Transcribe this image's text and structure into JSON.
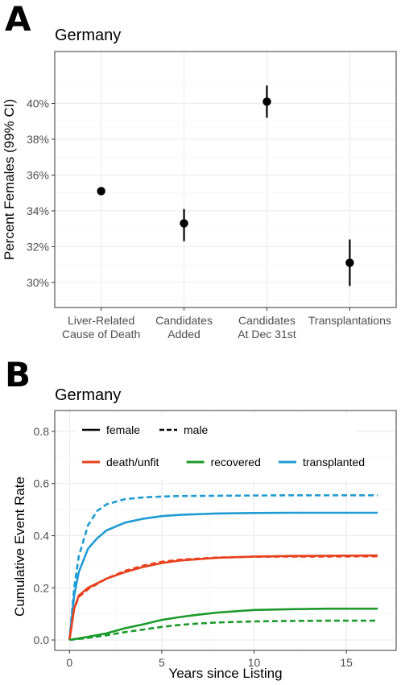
{
  "panels": [
    {
      "letter": "A",
      "title": "Germany"
    },
    {
      "letter": "B",
      "title": "Germany"
    }
  ],
  "chart_data": [
    {
      "type": "scatter",
      "title": "Germany",
      "ylabel": "Percent Females (99% CI)",
      "xlabel": "",
      "categories": [
        [
          "Liver-Related",
          "Cause of Death"
        ],
        [
          "Candidates",
          "Added"
        ],
        [
          "Candidates",
          "At Dec 31st"
        ],
        [
          "Transplantations"
        ]
      ],
      "values": [
        35.1,
        33.3,
        40.1,
        31.1
      ],
      "ci_low": [
        null,
        32.3,
        39.2,
        29.8
      ],
      "ci_high": [
        null,
        34.1,
        41.0,
        32.4
      ],
      "ylim": [
        28.6,
        42.9
      ],
      "yticks": [
        30,
        32,
        34,
        36,
        38,
        40
      ],
      "ytick_labels": [
        "30%",
        "32%",
        "34%",
        "36%",
        "38%",
        "40%"
      ],
      "grid": true
    },
    {
      "type": "line",
      "title": "Germany",
      "xlabel": "Years since Listing",
      "ylabel": "Cumulative Event Rate",
      "xlim": [
        -0.8,
        17.7
      ],
      "ylim": [
        -0.04,
        0.88
      ],
      "xticks": [
        0,
        5,
        10,
        15
      ],
      "xtick_labels": [
        "0",
        "5",
        "10",
        "15"
      ],
      "yticks": [
        0.0,
        0.2,
        0.4,
        0.6,
        0.8
      ],
      "ytick_labels": [
        "0.0",
        "0.2",
        "0.4",
        "0.6",
        "0.8"
      ],
      "grid": true,
      "legend_placement": "top-left",
      "legend": {
        "linetypes": [
          {
            "label": "female",
            "dash": "solid"
          },
          {
            "label": "male",
            "dash": "dashed"
          }
        ],
        "colors": [
          {
            "label": "death/unfit",
            "color": "#e8401c"
          },
          {
            "label": "recovered",
            "color": "#1a9a2a"
          },
          {
            "label": "transplanted",
            "color": "#1f9bd4"
          }
        ]
      },
      "series": [
        {
          "event": "transplanted",
          "sex": "male",
          "color": "#1f9bd4",
          "dash": "dashed",
          "x": [
            0,
            0.25,
            0.5,
            1,
            1.5,
            2,
            3,
            4,
            5,
            6,
            8,
            10,
            12,
            14,
            16.7
          ],
          "y": [
            0,
            0.2,
            0.32,
            0.44,
            0.495,
            0.52,
            0.54,
            0.547,
            0.55,
            0.552,
            0.553,
            0.554,
            0.555,
            0.555,
            0.555
          ]
        },
        {
          "event": "transplanted",
          "sex": "female",
          "color": "#1f9bd4",
          "dash": "solid",
          "x": [
            0,
            0.25,
            0.5,
            1,
            1.5,
            2,
            3,
            4,
            5,
            6,
            8,
            10,
            12,
            14,
            16.7
          ],
          "y": [
            0,
            0.17,
            0.26,
            0.35,
            0.39,
            0.42,
            0.45,
            0.465,
            0.475,
            0.48,
            0.485,
            0.487,
            0.488,
            0.488,
            0.488
          ]
        },
        {
          "event": "death/unfit",
          "sex": "female",
          "color": "#e8401c",
          "dash": "solid",
          "x": [
            0,
            0.25,
            0.5,
            1,
            2,
            3,
            4,
            5,
            6,
            8,
            10,
            12,
            14,
            16.7
          ],
          "y": [
            0,
            0.12,
            0.17,
            0.2,
            0.235,
            0.26,
            0.28,
            0.295,
            0.305,
            0.315,
            0.32,
            0.322,
            0.323,
            0.324
          ]
        },
        {
          "event": "death/unfit",
          "sex": "male",
          "color": "#e8401c",
          "dash": "dashed",
          "x": [
            0,
            0.25,
            0.5,
            1,
            2,
            3,
            4,
            5,
            6,
            8,
            10,
            12,
            14,
            16.7
          ],
          "y": [
            0,
            0.12,
            0.165,
            0.195,
            0.235,
            0.265,
            0.285,
            0.3,
            0.308,
            0.316,
            0.319,
            0.32,
            0.32,
            0.321
          ]
        },
        {
          "event": "recovered",
          "sex": "female",
          "color": "#1a9a2a",
          "dash": "solid",
          "x": [
            0,
            1,
            2,
            3,
            4,
            5,
            6,
            7,
            8,
            10,
            12,
            14,
            16.7
          ],
          "y": [
            0,
            0.012,
            0.025,
            0.045,
            0.06,
            0.077,
            0.088,
            0.097,
            0.105,
            0.115,
            0.118,
            0.12,
            0.12
          ]
        },
        {
          "event": "recovered",
          "sex": "male",
          "color": "#1a9a2a",
          "dash": "dashed",
          "x": [
            0,
            1,
            2,
            3,
            4,
            5,
            6,
            7,
            8,
            10,
            12,
            14,
            16.7
          ],
          "y": [
            0,
            0.008,
            0.018,
            0.03,
            0.04,
            0.05,
            0.058,
            0.063,
            0.067,
            0.071,
            0.073,
            0.074,
            0.074
          ]
        }
      ]
    }
  ]
}
